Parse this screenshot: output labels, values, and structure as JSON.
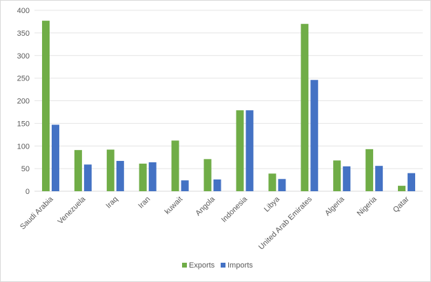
{
  "chart_data": {
    "type": "bar",
    "categories": [
      "Saudi Arabia",
      "Venezuela",
      "Iraq",
      "Iran",
      "kuwait",
      "Angola",
      "Indonesia",
      "Libya",
      "United Arab Emirates",
      "Algeria",
      "Nigeria",
      "Qatar"
    ],
    "series": [
      {
        "name": "Exports",
        "color": "#70ad47",
        "values": [
          377,
          91,
          92,
          61,
          112,
          71,
          179,
          39,
          370,
          68,
          93,
          12
        ]
      },
      {
        "name": "Imports",
        "color": "#4472c4",
        "values": [
          147,
          59,
          67,
          64,
          24,
          26,
          179,
          27,
          246,
          55,
          56,
          40
        ]
      }
    ],
    "yticks": [
      0,
      50,
      100,
      150,
      200,
      250,
      300,
      350,
      400
    ],
    "ylim": [
      0,
      400
    ],
    "grid": true,
    "legend": "bottom"
  }
}
